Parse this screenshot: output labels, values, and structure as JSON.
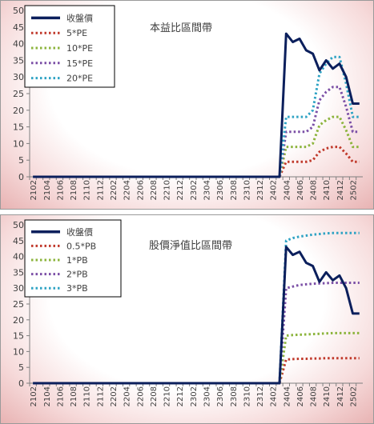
{
  "chart_data": [
    {
      "type": "line",
      "title": "本益比區間帶",
      "xlabel": "",
      "ylabel": "",
      "ylim": [
        0,
        50
      ],
      "yticks": [
        0,
        5,
        10,
        15,
        20,
        25,
        30,
        35,
        40,
        45,
        50
      ],
      "x": [
        "2102",
        "2103",
        "2104",
        "2105",
        "2106",
        "2107",
        "2108",
        "2109",
        "2110",
        "2111",
        "2112",
        "2201",
        "2202",
        "2203",
        "2204",
        "2205",
        "2206",
        "2207",
        "2208",
        "2209",
        "2210",
        "2211",
        "2212",
        "2301",
        "2302",
        "2303",
        "2304",
        "2305",
        "2306",
        "2307",
        "2308",
        "2309",
        "2310",
        "2311",
        "2312",
        "2401",
        "2402",
        "2403",
        "2404",
        "2405",
        "2406",
        "2407",
        "2408",
        "2409",
        "2410",
        "2411",
        "2412",
        "2501",
        "2502",
        "2503"
      ],
      "xtick_labels": [
        "2102",
        "2104",
        "2106",
        "2108",
        "2110",
        "2112",
        "2202",
        "2204",
        "2206",
        "2208",
        "2210",
        "2212",
        "2302",
        "2304",
        "2306",
        "2308",
        "2310",
        "2312",
        "2402",
        "2404",
        "2406",
        "2408",
        "2410",
        "2412",
        "2502"
      ],
      "grid": false,
      "legend_position": "top-left",
      "series": [
        {
          "name": "收盤價",
          "color": "#0b1f5c",
          "style": "solid",
          "values": [
            0,
            0,
            0,
            0,
            0,
            0,
            0,
            0,
            0,
            0,
            0,
            0,
            0,
            0,
            0,
            0,
            0,
            0,
            0,
            0,
            0,
            0,
            0,
            0,
            0,
            0,
            0,
            0,
            0,
            0,
            0,
            0,
            0,
            0,
            0,
            0,
            0,
            0,
            43,
            40.5,
            41.5,
            38,
            37,
            32,
            35,
            32.5,
            34,
            30,
            22,
            22
          ]
        },
        {
          "name": "5*PE",
          "color": "#c0392b",
          "style": "dotted",
          "values": [
            0,
            0,
            0,
            0,
            0,
            0,
            0,
            0,
            0,
            0,
            0,
            0,
            0,
            0,
            0,
            0,
            0,
            0,
            0,
            0,
            0,
            0,
            0,
            0,
            0,
            0,
            0,
            0,
            0,
            0,
            0,
            0,
            0,
            0,
            0,
            0,
            0,
            0,
            4.5,
            4.5,
            4.5,
            4.5,
            5,
            7.5,
            8.5,
            9,
            9,
            7,
            4.5,
            4.5
          ]
        },
        {
          "name": "10*PE",
          "color": "#8cb43c",
          "style": "dotted",
          "values": [
            0,
            0,
            0,
            0,
            0,
            0,
            0,
            0,
            0,
            0,
            0,
            0,
            0,
            0,
            0,
            0,
            0,
            0,
            0,
            0,
            0,
            0,
            0,
            0,
            0,
            0,
            0,
            0,
            0,
            0,
            0,
            0,
            0,
            0,
            0,
            0,
            0,
            0,
            9,
            9,
            9,
            9,
            10,
            15.5,
            17,
            18,
            18,
            14,
            9,
            9
          ]
        },
        {
          "name": "15*PE",
          "color": "#7b4fa6",
          "style": "dotted",
          "values": [
            0,
            0,
            0,
            0,
            0,
            0,
            0,
            0,
            0,
            0,
            0,
            0,
            0,
            0,
            0,
            0,
            0,
            0,
            0,
            0,
            0,
            0,
            0,
            0,
            0,
            0,
            0,
            0,
            0,
            0,
            0,
            0,
            0,
            0,
            0,
            0,
            0,
            0,
            13.5,
            13.5,
            13.5,
            13.5,
            15,
            23,
            25.5,
            27,
            27,
            21,
            13.5,
            13.5
          ]
        },
        {
          "name": "20*PE",
          "color": "#2fa3c4",
          "style": "dotted",
          "values": [
            0,
            0,
            0,
            0,
            0,
            0,
            0,
            0,
            0,
            0,
            0,
            0,
            0,
            0,
            0,
            0,
            0,
            0,
            0,
            0,
            0,
            0,
            0,
            0,
            0,
            0,
            0,
            0,
            0,
            0,
            0,
            0,
            0,
            0,
            0,
            0,
            0,
            0,
            18,
            18,
            18,
            18,
            20,
            31,
            34,
            36,
            36,
            28,
            18,
            18
          ]
        }
      ]
    },
    {
      "type": "line",
      "title": "股價淨值比區間帶",
      "xlabel": "",
      "ylabel": "",
      "ylim": [
        0,
        50
      ],
      "yticks": [
        0,
        5,
        10,
        15,
        20,
        25,
        30,
        35,
        40,
        45,
        50
      ],
      "x": [
        "2102",
        "2103",
        "2104",
        "2105",
        "2106",
        "2107",
        "2108",
        "2109",
        "2110",
        "2111",
        "2112",
        "2201",
        "2202",
        "2203",
        "2204",
        "2205",
        "2206",
        "2207",
        "2208",
        "2209",
        "2210",
        "2211",
        "2212",
        "2301",
        "2302",
        "2303",
        "2304",
        "2305",
        "2306",
        "2307",
        "2308",
        "2309",
        "2310",
        "2311",
        "2312",
        "2401",
        "2402",
        "2403",
        "2404",
        "2405",
        "2406",
        "2407",
        "2408",
        "2409",
        "2410",
        "2411",
        "2412",
        "2501",
        "2502",
        "2503"
      ],
      "xtick_labels": [
        "2102",
        "2104",
        "2106",
        "2108",
        "2110",
        "2112",
        "2202",
        "2204",
        "2206",
        "2208",
        "2210",
        "2212",
        "2302",
        "2304",
        "2306",
        "2308",
        "2310",
        "2312",
        "2402",
        "2404",
        "2406",
        "2408",
        "2410",
        "2412",
        "2502"
      ],
      "grid": false,
      "legend_position": "top-left",
      "series": [
        {
          "name": "收盤價",
          "color": "#0b1f5c",
          "style": "solid",
          "values": [
            0,
            0,
            0,
            0,
            0,
            0,
            0,
            0,
            0,
            0,
            0,
            0,
            0,
            0,
            0,
            0,
            0,
            0,
            0,
            0,
            0,
            0,
            0,
            0,
            0,
            0,
            0,
            0,
            0,
            0,
            0,
            0,
            0,
            0,
            0,
            0,
            0,
            0,
            43,
            40.5,
            41.5,
            38,
            37,
            32,
            35,
            32.5,
            34,
            30,
            22,
            22
          ]
        },
        {
          "name": "0.5*PB",
          "color": "#c0392b",
          "style": "dotted",
          "values": [
            0,
            0,
            0,
            0,
            0,
            0,
            0,
            0,
            0,
            0,
            0,
            0,
            0,
            0,
            0,
            0,
            0,
            0,
            0,
            0,
            0,
            0,
            0,
            0,
            0,
            0,
            0,
            0,
            0,
            0,
            0,
            0,
            0,
            0,
            0,
            0,
            0,
            0,
            7.5,
            7.6,
            7.7,
            7.7,
            7.8,
            7.8,
            7.9,
            7.9,
            7.9,
            7.9,
            7.9,
            7.9
          ]
        },
        {
          "name": "1*PB",
          "color": "#8cb43c",
          "style": "dotted",
          "values": [
            0,
            0,
            0,
            0,
            0,
            0,
            0,
            0,
            0,
            0,
            0,
            0,
            0,
            0,
            0,
            0,
            0,
            0,
            0,
            0,
            0,
            0,
            0,
            0,
            0,
            0,
            0,
            0,
            0,
            0,
            0,
            0,
            0,
            0,
            0,
            0,
            0,
            0,
            15,
            15.2,
            15.3,
            15.4,
            15.5,
            15.6,
            15.7,
            15.8,
            15.8,
            15.8,
            15.8,
            15.8
          ]
        },
        {
          "name": "2*PB",
          "color": "#7b4fa6",
          "style": "dotted",
          "values": [
            0,
            0,
            0,
            0,
            0,
            0,
            0,
            0,
            0,
            0,
            0,
            0,
            0,
            0,
            0,
            0,
            0,
            0,
            0,
            0,
            0,
            0,
            0,
            0,
            0,
            0,
            0,
            0,
            0,
            0,
            0,
            0,
            0,
            0,
            0,
            0,
            0,
            0,
            30,
            30.5,
            31,
            31.2,
            31.4,
            31.5,
            31.6,
            31.7,
            31.7,
            31.7,
            31.7,
            31.7
          ]
        },
        {
          "name": "3*PB",
          "color": "#2fa3c4",
          "style": "dotted",
          "values": [
            0,
            0,
            0,
            0,
            0,
            0,
            0,
            0,
            0,
            0,
            0,
            0,
            0,
            0,
            0,
            0,
            0,
            0,
            0,
            0,
            0,
            0,
            0,
            0,
            0,
            0,
            0,
            0,
            0,
            0,
            0,
            0,
            0,
            0,
            0,
            0,
            0,
            0,
            45,
            45.8,
            46.3,
            46.6,
            46.9,
            47.1,
            47.3,
            47.4,
            47.4,
            47.4,
            47.4,
            47.4
          ]
        }
      ]
    }
  ]
}
